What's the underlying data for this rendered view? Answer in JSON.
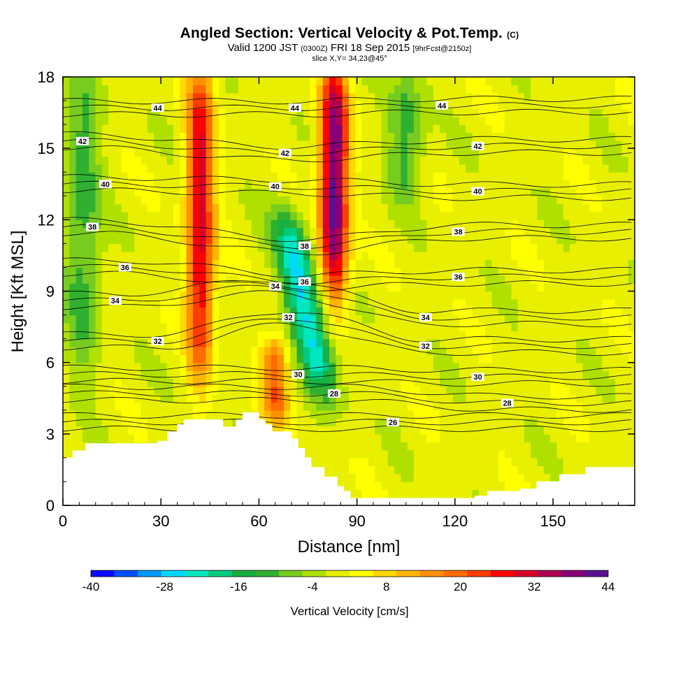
{
  "header": {
    "title": "Angled Section: Vertical Velocity & Pot.Temp.",
    "title_unit": "(C)",
    "valid_prefix": "Valid 1200 JST",
    "valid_utc": "(0300Z)",
    "valid_date": "FRI 18 Sep 2015",
    "forecast": "[9hrFcst@2150z]",
    "slice": "slice X,Y= 34,23@45°"
  },
  "chart_data": {
    "type": "heatmap",
    "xlabel": "Distance [nm]",
    "ylabel": "Height [Kft MSL]",
    "xlim": [
      0,
      175
    ],
    "ylim": [
      0,
      18
    ],
    "x_ticks": [
      0,
      30,
      60,
      90,
      120,
      150
    ],
    "y_ticks": [
      0,
      3,
      6,
      9,
      12,
      15,
      18
    ],
    "colorbar": {
      "label": "Vertical Velocity [cm/s]",
      "tick_labels": [
        -40,
        -28,
        -16,
        -4,
        8,
        20,
        32,
        44
      ],
      "levels": [
        -40,
        -36,
        -32,
        -28,
        -24,
        -20,
        -16,
        -12,
        -8,
        -4,
        0,
        4,
        8,
        12,
        16,
        20,
        24,
        28,
        32,
        36,
        40,
        44
      ],
      "colors": [
        "#0a0aff",
        "#0050ff",
        "#0098ff",
        "#00d8ff",
        "#00e6c0",
        "#00cc80",
        "#18b040",
        "#30b030",
        "#78cc20",
        "#b0e000",
        "#e8f000",
        "#ffff00",
        "#ffd800",
        "#ffb400",
        "#ff9000",
        "#ff6c00",
        "#ff3c00",
        "#ff0000",
        "#d80028",
        "#b00050",
        "#880078",
        "#5a1090"
      ]
    },
    "vertical_velocity_features": [
      {
        "type": "updraft",
        "x_center": 42,
        "z_bottom": 6,
        "z_top": 18,
        "peak": 32
      },
      {
        "type": "updraft",
        "x_center": 83,
        "z_bottom": 9,
        "z_top": 18,
        "peak": 44
      },
      {
        "type": "updraft",
        "x_center": 65,
        "z_bottom": 3.5,
        "z_top": 7,
        "peak": 20
      },
      {
        "type": "downdraft",
        "x_center": 74,
        "z_bottom": 5,
        "z_top": 12,
        "peak": -28
      },
      {
        "type": "downdraft",
        "x_center": 6,
        "z_bottom": 6,
        "z_top": 18,
        "peak": -12
      },
      {
        "type": "downdraft",
        "x_center": 105,
        "z_bottom": 13,
        "z_top": 18,
        "peak": -12
      }
    ],
    "terrain": [
      [
        0,
        2
      ],
      [
        3,
        2.3
      ],
      [
        7,
        2.6
      ],
      [
        29,
        2.7
      ],
      [
        32,
        3.1
      ],
      [
        35,
        3.4
      ],
      [
        37,
        3.6
      ],
      [
        48,
        3.6
      ],
      [
        49,
        3.3
      ],
      [
        52,
        3.3
      ],
      [
        53,
        3.6
      ],
      [
        55,
        3.9
      ],
      [
        58,
        3.9
      ],
      [
        60,
        3.6
      ],
      [
        62,
        3.4
      ],
      [
        64,
        3.1
      ],
      [
        68,
        3.1
      ],
      [
        70,
        2.8
      ],
      [
        72,
        2.4
      ],
      [
        74,
        2.0
      ],
      [
        76,
        1.6
      ],
      [
        80,
        1.2
      ],
      [
        84,
        0.8
      ],
      [
        86,
        0.6
      ],
      [
        88,
        0.3
      ],
      [
        92,
        0.3
      ],
      [
        100,
        0.3
      ],
      [
        108,
        0.3
      ],
      [
        118,
        0.3
      ],
      [
        126,
        0.4
      ],
      [
        130,
        0.6
      ],
      [
        140,
        0.7
      ],
      [
        145,
        1.0
      ],
      [
        152,
        1.3
      ],
      [
        160,
        1.6
      ],
      [
        175,
        1.6
      ]
    ],
    "isentrope_labels": [
      {
        "text": "44",
        "x": 29,
        "y": 16.7
      },
      {
        "text": "44",
        "x": 71,
        "y": 16.7
      },
      {
        "text": "44",
        "x": 116,
        "y": 16.8
      },
      {
        "text": "42",
        "x": 6,
        "y": 15.3
      },
      {
        "text": "42",
        "x": 68,
        "y": 14.8
      },
      {
        "text": "42",
        "x": 127,
        "y": 15.1
      },
      {
        "text": "40",
        "x": 13,
        "y": 13.5
      },
      {
        "text": "40",
        "x": 65,
        "y": 13.4
      },
      {
        "text": "40",
        "x": 127,
        "y": 13.2
      },
      {
        "text": "38",
        "x": 9,
        "y": 11.7
      },
      {
        "text": "38",
        "x": 74,
        "y": 10.9
      },
      {
        "text": "38",
        "x": 121,
        "y": 11.5
      },
      {
        "text": "36",
        "x": 19,
        "y": 10.0
      },
      {
        "text": "36",
        "x": 74,
        "y": 9.4
      },
      {
        "text": "36",
        "x": 121,
        "y": 9.6
      },
      {
        "text": "34",
        "x": 16,
        "y": 8.6
      },
      {
        "text": "34",
        "x": 65,
        "y": 9.2
      },
      {
        "text": "34",
        "x": 111,
        "y": 7.9
      },
      {
        "text": "32",
        "x": 29,
        "y": 6.9
      },
      {
        "text": "32",
        "x": 69,
        "y": 7.9
      },
      {
        "text": "32",
        "x": 111,
        "y": 6.7
      },
      {
        "text": "30",
        "x": 72,
        "y": 5.5
      },
      {
        "text": "30",
        "x": 127,
        "y": 5.4
      },
      {
        "text": "28",
        "x": 83,
        "y": 4.7
      },
      {
        "text": "28",
        "x": 136,
        "y": 4.3
      },
      {
        "text": "26",
        "x": 101,
        "y": 3.5
      }
    ]
  }
}
